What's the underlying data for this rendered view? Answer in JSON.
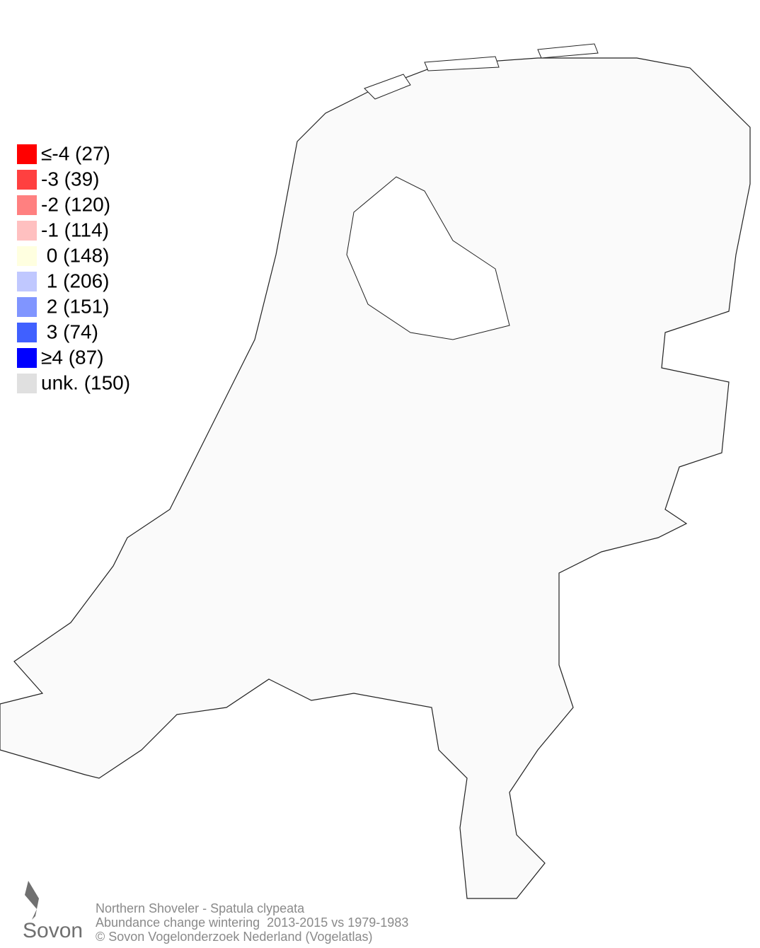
{
  "legend": {
    "items": [
      {
        "text": "≤-4 (27)",
        "color": "#ff0000"
      },
      {
        "text": "-3 (39)",
        "color": "#ff4040"
      },
      {
        "text": "-2 (120)",
        "color": "#ff8080"
      },
      {
        "text": "-1 (114)",
        "color": "#ffc0c0"
      },
      {
        "text": " 0 (148)",
        "color": "#ffffe0"
      },
      {
        "text": " 1 (206)",
        "color": "#c0c8ff"
      },
      {
        "text": " 2 (151)",
        "color": "#8095ff"
      },
      {
        "text": " 3 (74)",
        "color": "#4060ff"
      },
      {
        "text": "≥4 (87)",
        "color": "#0000ff"
      },
      {
        "text": "unk. (150)",
        "color": "#e0e0e0"
      }
    ]
  },
  "footer": {
    "logo": "Sovon",
    "lines": [
      "Northern Shoveler - Spatula clypeata",
      "Abundance change wintering  2013-2015 vs 1979-1983",
      "© Sovon Vogelonderzoek Nederland (Vogelatlas)"
    ]
  }
}
